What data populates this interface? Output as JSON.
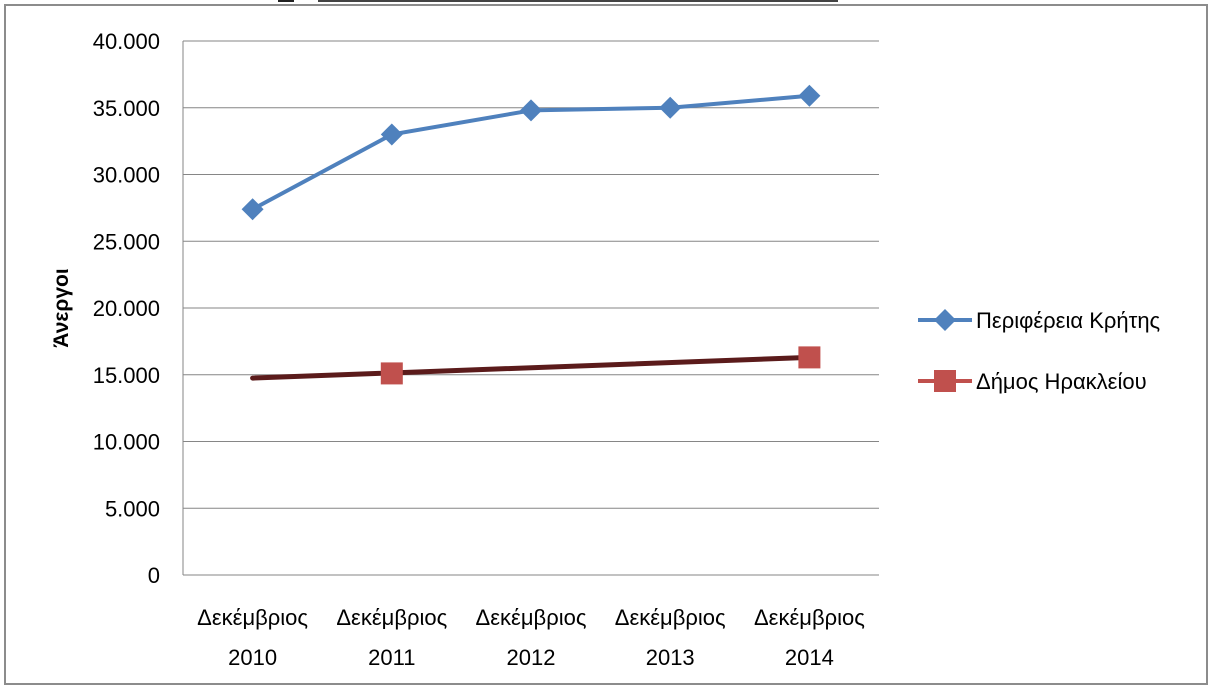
{
  "chart_data": {
    "type": "line",
    "title": "",
    "xlabel": "",
    "ylabel": "Άνεργοι",
    "categories": [
      [
        "Δεκέμβριος",
        "2010"
      ],
      [
        "Δεκέμβριος",
        "2011"
      ],
      [
        "Δεκέμβριος",
        "2012"
      ],
      [
        "Δεκέμβριος",
        "2013"
      ],
      [
        "Δεκέμβριος",
        "2014"
      ]
    ],
    "y_ticks": [
      "0",
      "5.000",
      "10.000",
      "15.000",
      "20.000",
      "25.000",
      "30.000",
      "35.000",
      "40.000"
    ],
    "ylim": [
      0,
      40000
    ],
    "grid": true,
    "legend_position": "right",
    "series": [
      {
        "name": "Περιφέρεια Κρήτης",
        "color": "#4f81bd",
        "marker": "diamond",
        "values": [
          27400,
          33000,
          34800,
          35000,
          35900
        ]
      },
      {
        "name": "Δήμος Ηρακλείου",
        "color": "#c0504d",
        "marker": "square",
        "values": [
          null,
          15100,
          null,
          null,
          16300
        ]
      }
    ],
    "trendline": {
      "color": "#5b1b1b",
      "from": 14750,
      "to": 16300
    }
  }
}
